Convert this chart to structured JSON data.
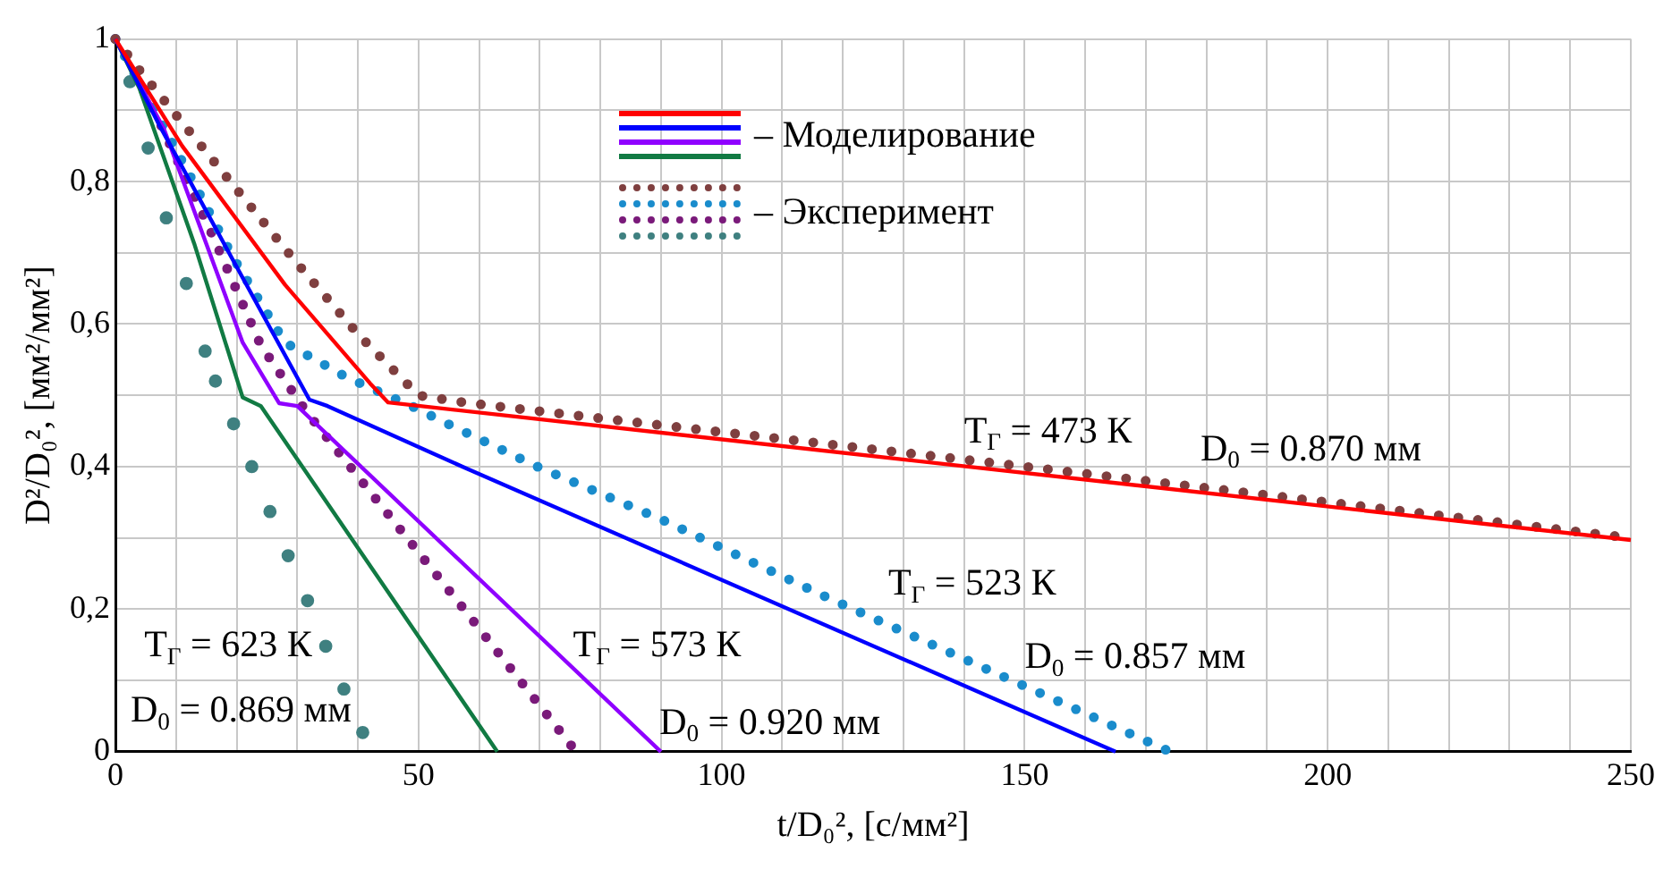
{
  "chart_data": {
    "type": "line",
    "xlabel": "t/D₀², [с/мм²]",
    "ylabel": "D²/D₀², [мм²/мм²]",
    "xlim": [
      0,
      250
    ],
    "ylim": [
      0,
      1
    ],
    "xticks": [
      0,
      {
        "value": 10,
        "label": null
      },
      {
        "value": 20,
        "label": null
      },
      {
        "value": 30,
        "label": null
      },
      {
        "value": 40,
        "label": null
      },
      50,
      {
        "value": 60,
        "label": null
      },
      {
        "value": 70,
        "label": null
      },
      {
        "value": 80,
        "label": null
      },
      {
        "value": 90,
        "label": null
      },
      100,
      {
        "value": 110,
        "label": null
      },
      {
        "value": 120,
        "label": null
      },
      {
        "value": 130,
        "label": null
      },
      {
        "value": 140,
        "label": null
      },
      150,
      {
        "value": 160,
        "label": null
      },
      {
        "value": 170,
        "label": null
      },
      {
        "value": 180,
        "label": null
      },
      {
        "value": 190,
        "label": null
      },
      200,
      {
        "value": 210,
        "label": null
      },
      {
        "value": 220,
        "label": null
      },
      {
        "value": 230,
        "label": null
      },
      {
        "value": 240,
        "label": null
      },
      250
    ],
    "yticks": [
      0,
      {
        "value": 0.1,
        "label": null
      },
      {
        "value": 0.2,
        "label": "0,2"
      },
      {
        "value": 0.3,
        "label": null
      },
      {
        "value": 0.4,
        "label": "0,4"
      },
      {
        "value": 0.5,
        "label": null
      },
      {
        "value": 0.6,
        "label": "0,6"
      },
      {
        "value": 0.7,
        "label": null
      },
      {
        "value": 0.8,
        "label": "0,8"
      },
      {
        "value": 0.9,
        "label": null
      },
      1
    ],
    "grid": true,
    "legend": "top",
    "line_style": "solid",
    "series": [
      {
        "name": "– Моделирование",
        "color": "#ff0000",
        "x": [
          0,
          11,
          28,
          42,
          45,
          250
        ],
        "values": [
          1,
          0.85,
          0.655,
          0.517,
          0.49,
          0.297
        ]
      },
      {
        "color": "#0000ff",
        "x": [
          0,
          7,
          19,
          32,
          35,
          58,
          165
        ],
        "values": [
          1,
          0.883,
          0.696,
          0.494,
          0.485,
          0.397,
          0
        ]
      },
      {
        "color": "#8f00ff",
        "x": [
          0,
          8,
          21,
          27,
          30,
          90
        ],
        "values": [
          1,
          0.874,
          0.574,
          0.489,
          0.485,
          0
        ]
      },
      {
        "color": "#117a43",
        "x": [
          0,
          4,
          13,
          21,
          24,
          63
        ],
        "values": [
          1,
          0.93,
          0.713,
          0.497,
          0.485,
          0
        ]
      },
      {
        "name": "– Эксперимент",
        "color": "#7f3f3f",
        "line_style": "dotted",
        "x": [
          0,
          4,
          18,
          29.5,
          40,
          50,
          57.5,
          86,
          146,
          250
        ],
        "values": [
          1,
          0.956,
          0.81,
          0.69,
          0.586,
          0.5,
          0.49,
          0.462,
          0.404,
          0.3
        ]
      },
      {
        "color": "#1a8ccc",
        "line_style": "dotted",
        "x": [
          0,
          12,
          19.5,
          28,
          38,
          49.6,
          53.6,
          69.6,
          89.8,
          117.8,
          150,
          174
        ],
        "values": [
          1,
          0.813,
          0.692,
          0.574,
          0.526,
          0.482,
          0.465,
          0.4,
          0.327,
          0.215,
          0.092,
          0
        ]
      },
      {
        "color": "#7a1a7a",
        "line_style": "dotted",
        "x": [
          0,
          3.3,
          16,
          24,
          31.5,
          39,
          57.5,
          76
        ],
        "values": [
          1,
          0.956,
          0.725,
          0.57,
          0.477,
          0.397,
          0.2,
          0
        ]
      },
      {
        "type": "scatter",
        "marker": "circle",
        "color": "#3f8080",
        "x": [
          2.4,
          5.4,
          8.4,
          11.7,
          14.8,
          16.5,
          19.5,
          22.5,
          25.5,
          28.5,
          31.7,
          34.7,
          37.7,
          40.8
        ],
        "values": [
          0.94,
          0.847,
          0.749,
          0.657,
          0.562,
          0.52,
          0.46,
          0.4,
          0.337,
          0.275,
          0.212,
          0.148,
          0.088,
          0.027
        ]
      }
    ],
    "annotations": [
      "T$_{Г}$ = 473 К",
      "D$_{0}$ = 0.870 мм",
      "T$_{Г}$ = 523 К",
      "D$_{0}$ = 0.857 мм",
      "T$_{Г}$ = 573 К",
      "D$_{0}$ = 0.920 мм",
      "T$_{Г}$ = 623 К",
      "D$_{0}$ = 0.869 мм"
    ]
  }
}
